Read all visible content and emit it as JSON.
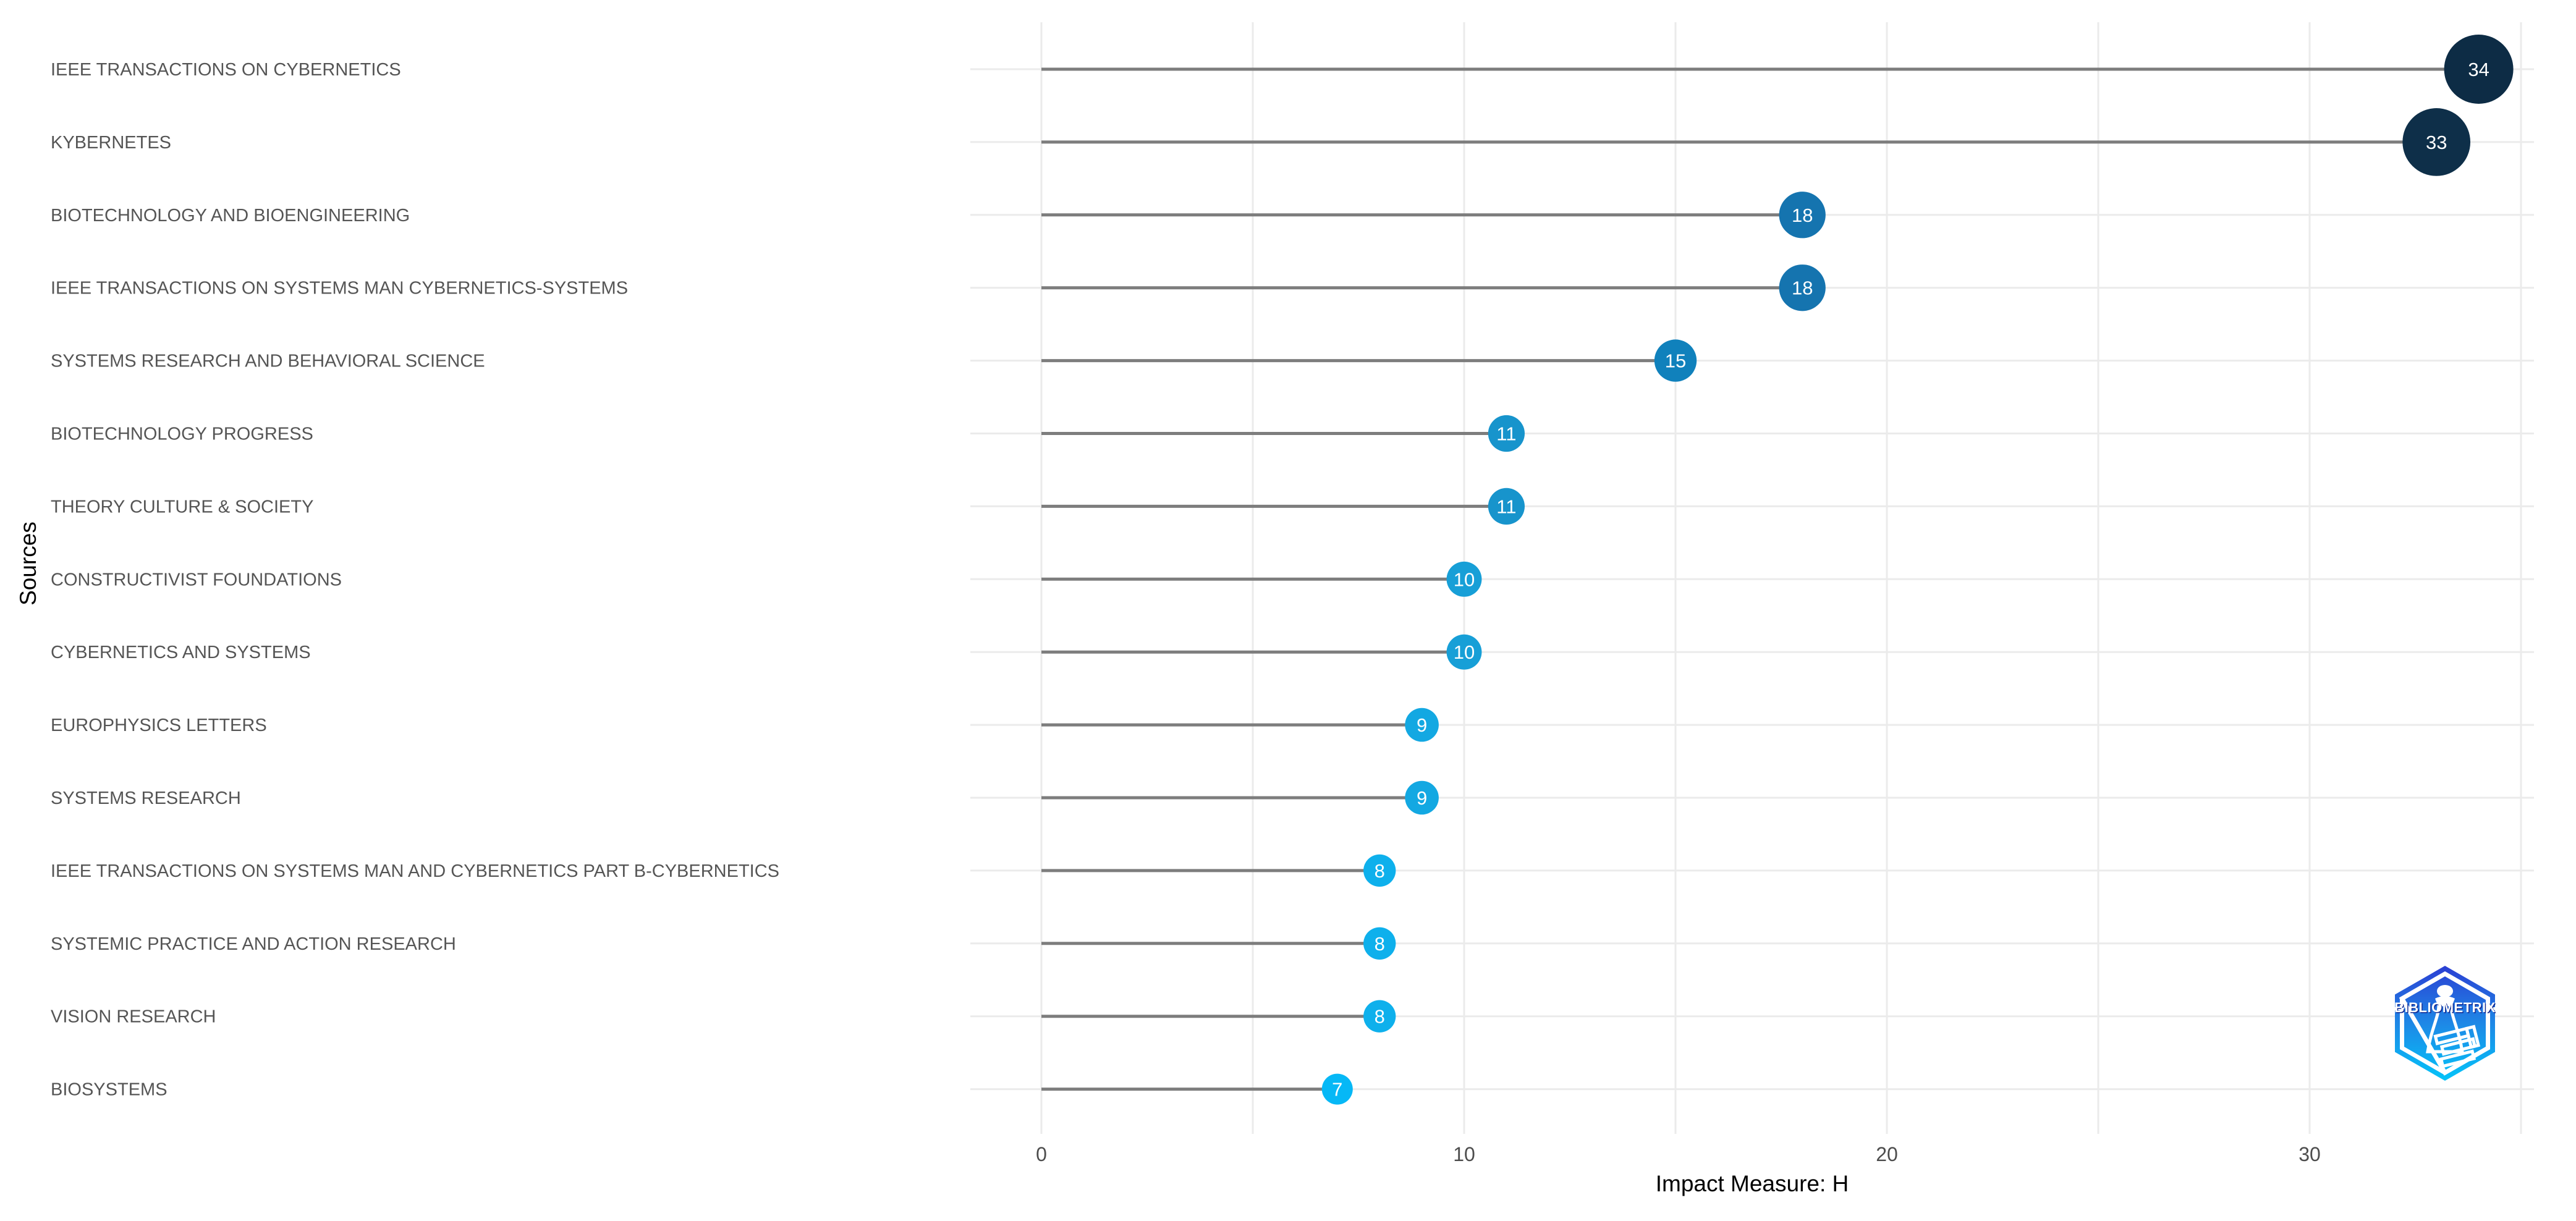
{
  "chart_data": {
    "type": "lollipop",
    "orientation": "horizontal",
    "title": "",
    "xlabel": "Impact Measure: H",
    "ylabel": "Sources",
    "xlim": [
      -1.7,
      35.3
    ],
    "grid": true,
    "legend": "none",
    "x_tick_labels": [
      "0",
      "10",
      "20",
      "30"
    ],
    "x_tick_values": [
      0,
      10,
      20,
      30
    ],
    "x_gridline_values": [
      0,
      5,
      10,
      15,
      20,
      25,
      30,
      35
    ],
    "grid_color": "#ebebeb",
    "stem_color": "#7d7d7d",
    "label_color": "#555555",
    "tick_label_color": "#4d4d4d",
    "value_text_color": "#ffffff",
    "categories": [
      "IEEE TRANSACTIONS ON CYBERNETICS",
      "KYBERNETES",
      "BIOTECHNOLOGY AND BIOENGINEERING",
      "IEEE TRANSACTIONS ON SYSTEMS MAN CYBERNETICS-SYSTEMS",
      "SYSTEMS RESEARCH AND BEHAVIORAL SCIENCE",
      "BIOTECHNOLOGY PROGRESS",
      "THEORY CULTURE & SOCIETY",
      "CONSTRUCTIVIST FOUNDATIONS",
      "CYBERNETICS AND SYSTEMS",
      "EUROPHYSICS LETTERS",
      "SYSTEMS RESEARCH",
      "IEEE TRANSACTIONS ON SYSTEMS MAN AND CYBERNETICS PART B-CYBERNETICS",
      "SYSTEMIC PRACTICE AND ACTION RESEARCH",
      "VISION RESEARCH",
      "BIOSYSTEMS"
    ],
    "values": [
      34,
      33,
      18,
      18,
      15,
      11,
      11,
      10,
      10,
      9,
      9,
      8,
      8,
      8,
      7
    ],
    "point_colors": [
      "#0d2c45",
      "#0e2f49",
      "#1574af",
      "#1574af",
      "#1081bc",
      "#1794cc",
      "#1794cc",
      "#179fd7",
      "#179fd7",
      "#13a8e2",
      "#13a8e2",
      "#0eb0ec",
      "#0eb0ec",
      "#0eb0ec",
      "#06b8f6"
    ]
  },
  "axis": {
    "x_title": "Impact Measure: H",
    "y_title": "Sources"
  },
  "logo": {
    "name": "bibliometrix-logo",
    "text": "BIBLIOMETRIX",
    "gradient_top": "#2b3fd3",
    "gradient_mid": "#1e88e6",
    "gradient_bottom": "#04c4f9"
  }
}
